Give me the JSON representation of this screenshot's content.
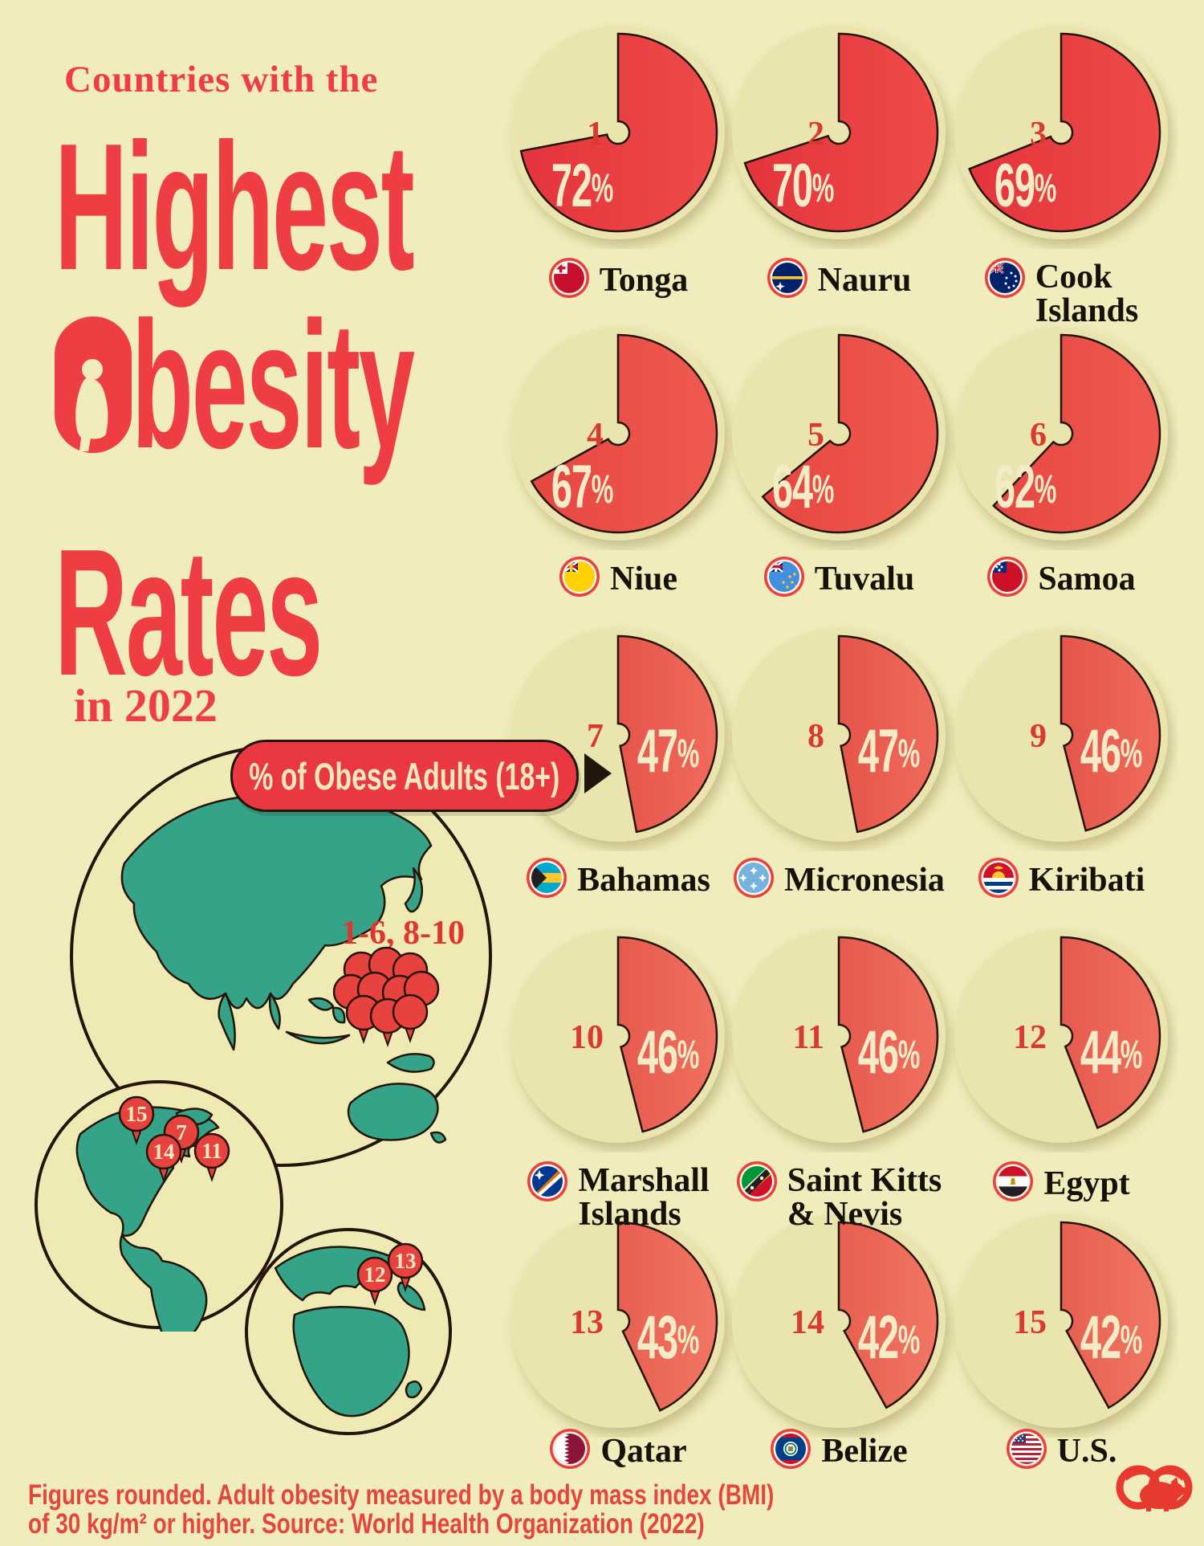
{
  "title": {
    "kicker": "Countries with the",
    "line1": "Highest",
    "line2": "Obesity",
    "line3": "Rates",
    "year_line": "in 2022"
  },
  "legend": {
    "pill_label": "% of Obese Adults (18+)"
  },
  "map": {
    "cluster_label": "1-6, 8-10",
    "americas_pins": [
      15,
      7,
      14,
      11
    ],
    "europe_africa_pins": [
      12,
      13
    ]
  },
  "ranking": [
    {
      "rank": 1,
      "country": "Tonga",
      "name_lines": [
        "Tonga"
      ],
      "percent": 72,
      "percent_label": "72%",
      "flag": "tonga"
    },
    {
      "rank": 2,
      "country": "Nauru",
      "name_lines": [
        "Nauru"
      ],
      "percent": 70,
      "percent_label": "70%",
      "flag": "nauru"
    },
    {
      "rank": 3,
      "country": "Cook Islands",
      "name_lines": [
        "Cook",
        "Islands"
      ],
      "percent": 69,
      "percent_label": "69%",
      "flag": "cook_islands"
    },
    {
      "rank": 4,
      "country": "Niue",
      "name_lines": [
        "Niue"
      ],
      "percent": 67,
      "percent_label": "67%",
      "flag": "niue"
    },
    {
      "rank": 5,
      "country": "Tuvalu",
      "name_lines": [
        "Tuvalu"
      ],
      "percent": 64,
      "percent_label": "64%",
      "flag": "tuvalu"
    },
    {
      "rank": 6,
      "country": "Samoa",
      "name_lines": [
        "Samoa"
      ],
      "percent": 62,
      "percent_label": "62%",
      "flag": "samoa"
    },
    {
      "rank": 7,
      "country": "Bahamas",
      "name_lines": [
        "Bahamas"
      ],
      "percent": 47,
      "percent_label": "47%",
      "flag": "bahamas"
    },
    {
      "rank": 8,
      "country": "Micronesia",
      "name_lines": [
        "Micronesia"
      ],
      "percent": 47,
      "percent_label": "47%",
      "flag": "micronesia"
    },
    {
      "rank": 9,
      "country": "Kiribati",
      "name_lines": [
        "Kiribati"
      ],
      "percent": 46,
      "percent_label": "46%",
      "flag": "kiribati"
    },
    {
      "rank": 10,
      "country": "Marshall Islands",
      "name_lines": [
        "Marshall",
        "Islands"
      ],
      "percent": 46,
      "percent_label": "46%",
      "flag": "marshall_islands"
    },
    {
      "rank": 11,
      "country": "Saint Kitts & Nevis",
      "name_lines": [
        "Saint Kitts",
        "& Nevis"
      ],
      "percent": 46,
      "percent_label": "46%",
      "flag": "saint_kitts"
    },
    {
      "rank": 12,
      "country": "Egypt",
      "name_lines": [
        "Egypt"
      ],
      "percent": 44,
      "percent_label": "44%",
      "flag": "egypt"
    },
    {
      "rank": 13,
      "country": "Qatar",
      "name_lines": [
        "Qatar"
      ],
      "percent": 43,
      "percent_label": "43%",
      "flag": "qatar"
    },
    {
      "rank": 14,
      "country": "Belize",
      "name_lines": [
        "Belize"
      ],
      "percent": 42,
      "percent_label": "42%",
      "flag": "belize"
    },
    {
      "rank": 15,
      "country": "U.S.",
      "name_lines": [
        "U.S."
      ],
      "percent": 42,
      "percent_label": "42%",
      "flag": "us"
    }
  ],
  "chart_data": {
    "type": "pie",
    "title": "Countries with the Highest Obesity Rates in 2022",
    "unit": "% of Obese Adults (18+)",
    "categories": [
      "Tonga",
      "Nauru",
      "Cook Islands",
      "Niue",
      "Tuvalu",
      "Samoa",
      "Bahamas",
      "Micronesia",
      "Kiribati",
      "Marshall Islands",
      "Saint Kitts & Nevis",
      "Egypt",
      "Qatar",
      "Belize",
      "U.S."
    ],
    "values": [
      72,
      70,
      69,
      67,
      64,
      62,
      47,
      47,
      46,
      46,
      46,
      44,
      43,
      42,
      42
    ],
    "ranks": [
      1,
      2,
      3,
      4,
      5,
      6,
      7,
      8,
      9,
      10,
      11,
      12,
      13,
      14,
      15
    ],
    "legend_position": "left",
    "source": "World Health Organization (2022)"
  },
  "footnote_lines": [
    "Figures rounded. Adult obesity measured by a body mass index (BMI)",
    "of 30 kg/m² or higher. Source: World Health Organization (2022)"
  ],
  "colors": {
    "background": "#F1ECBB",
    "tile_circle": "#EAE4AF",
    "title_red": "#EE3D43",
    "rank_red": "#D93A30",
    "percent_cream": "#F4ECC6",
    "land_teal": "#35A388",
    "outline_dark": "#241409",
    "pin_red": "#E8423E",
    "row_gradients": [
      [
        "#E4343C",
        "#EE4B49"
      ],
      [
        "#E64740",
        "#EF5A50"
      ],
      [
        "#E5544A",
        "#F06B5C"
      ],
      [
        "#E65A4E",
        "#F07060"
      ],
      [
        "#E75F50",
        "#F17663"
      ]
    ]
  }
}
